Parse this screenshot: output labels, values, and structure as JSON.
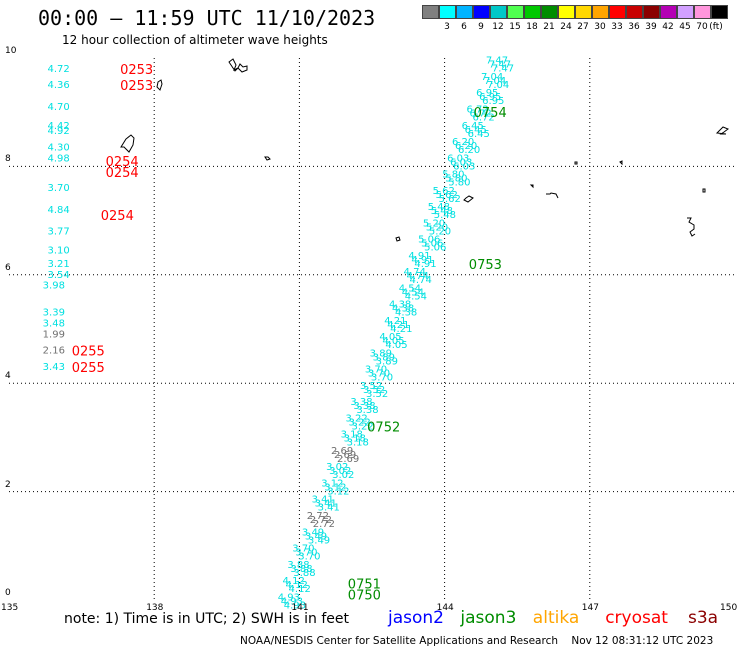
{
  "header": {
    "title": "00:00 – 11:59 UTC 11/10/2023",
    "subtitle": "12 hour collection of altimeter wave heights"
  },
  "legend": {
    "unit": "(ft)",
    "swatches": [
      {
        "label": "",
        "color": "#808080"
      },
      {
        "label": "3",
        "color": "#00ffff"
      },
      {
        "label": "6",
        "color": "#00b4ff"
      },
      {
        "label": "9",
        "color": "#0000ff"
      },
      {
        "label": "12",
        "color": "#00c8c8"
      },
      {
        "label": "15",
        "color": "#50ff50"
      },
      {
        "label": "18",
        "color": "#00c800"
      },
      {
        "label": "21",
        "color": "#008c00"
      },
      {
        "label": "24",
        "color": "#ffff00"
      },
      {
        "label": "27",
        "color": "#ffd700"
      },
      {
        "label": "30",
        "color": "#ffa500"
      },
      {
        "label": "33",
        "color": "#ff0000"
      },
      {
        "label": "36",
        "color": "#c80000"
      },
      {
        "label": "39",
        "color": "#8b0000"
      },
      {
        "label": "42",
        "color": "#b400b4"
      },
      {
        "label": "45",
        "color": "#d2a0ff"
      },
      {
        "label": "70",
        "color": "#ff96dc"
      },
      {
        "label": "",
        "color": "#000000"
      }
    ]
  },
  "axes": {
    "lon_ticks": [
      "135",
      "138",
      "141",
      "144",
      "147",
      "150"
    ],
    "lat_ticks": [
      "0",
      "2",
      "4",
      "6",
      "8",
      "10"
    ],
    "lon_range": [
      135,
      150
    ],
    "lat_range": [
      0,
      10
    ]
  },
  "track_labels": {
    "cryosat": [
      {
        "time": "0253",
        "lon": 136.8,
        "lat": 9.8
      },
      {
        "time": "0253",
        "lon": 136.8,
        "lat": 9.5
      },
      {
        "time": "0254",
        "lon": 136.5,
        "lat": 8.1
      },
      {
        "time": "0254",
        "lon": 136.5,
        "lat": 7.9
      },
      {
        "time": "0254",
        "lon": 136.4,
        "lat": 7.1
      },
      {
        "time": "0255",
        "lon": 135.8,
        "lat": 4.6
      },
      {
        "time": "0255",
        "lon": 135.8,
        "lat": 4.3
      }
    ],
    "jason3": [
      {
        "time": "0754",
        "lon": 144.6,
        "lat": 9.0
      },
      {
        "time": "0753",
        "lon": 144.5,
        "lat": 6.2
      },
      {
        "time": "0752",
        "lon": 142.4,
        "lat": 3.2
      },
      {
        "time": "0751",
        "lon": 142.0,
        "lat": 0.3
      },
      {
        "time": "0750",
        "lon": 142.0,
        "lat": 0.1
      }
    ]
  },
  "swh_values": {
    "cryosat_col": [
      {
        "v": "4.72",
        "c": "cyan",
        "lon": 135.3,
        "lat": 9.8
      },
      {
        "v": "4.36",
        "c": "cyan",
        "lon": 135.3,
        "lat": 9.5
      },
      {
        "v": "4.70",
        "c": "cyan",
        "lon": 135.3,
        "lat": 9.1
      },
      {
        "v": "4.42",
        "c": "cyan",
        "lon": 135.3,
        "lat": 8.75
      },
      {
        "v": "4.92",
        "c": "cyan",
        "lon": 135.3,
        "lat": 8.65
      },
      {
        "v": "4.30",
        "c": "cyan",
        "lon": 135.3,
        "lat": 8.35
      },
      {
        "v": "4.98",
        "c": "cyan",
        "lon": 135.3,
        "lat": 8.15
      },
      {
        "v": "3.70",
        "c": "cyan",
        "lon": 135.3,
        "lat": 7.6
      },
      {
        "v": "4.84",
        "c": "cyan",
        "lon": 135.3,
        "lat": 7.2
      },
      {
        "v": "3.77",
        "c": "cyan",
        "lon": 135.3,
        "lat": 6.8
      },
      {
        "v": "3.10",
        "c": "cyan",
        "lon": 135.3,
        "lat": 6.45
      },
      {
        "v": "3.21",
        "c": "cyan",
        "lon": 135.3,
        "lat": 6.2
      },
      {
        "v": "3.54",
        "c": "cyan",
        "lon": 135.3,
        "lat": 6.0
      },
      {
        "v": "3.98",
        "c": "cyan",
        "lon": 135.2,
        "lat": 5.8
      },
      {
        "v": "3.39",
        "c": "cyan",
        "lon": 135.2,
        "lat": 5.3
      },
      {
        "v": "3.48",
        "c": "cyan",
        "lon": 135.2,
        "lat": 5.1
      },
      {
        "v": "1.99",
        "c": "gray",
        "lon": 135.2,
        "lat": 4.9
      },
      {
        "v": "2.16",
        "c": "gray",
        "lon": 135.2,
        "lat": 4.6
      },
      {
        "v": "3.43",
        "c": "cyan",
        "lon": 135.2,
        "lat": 4.3
      }
    ],
    "jason3_track": [
      {
        "v": "7.47",
        "lon": 145.1,
        "lat": 9.95
      },
      {
        "v": "7.04",
        "lon": 145.0,
        "lat": 9.65
      },
      {
        "v": "6.95",
        "lon": 144.9,
        "lat": 9.35
      },
      {
        "v": "6.72",
        "lon": 144.7,
        "lat": 9.05
      },
      {
        "v": "6.45",
        "lon": 144.6,
        "lat": 8.75
      },
      {
        "v": "6.20",
        "lon": 144.4,
        "lat": 8.45
      },
      {
        "v": "6.03",
        "lon": 144.3,
        "lat": 8.15
      },
      {
        "v": "5.80",
        "lon": 144.2,
        "lat": 7.85
      },
      {
        "v": "5.62",
        "lon": 144.0,
        "lat": 7.55
      },
      {
        "v": "5.48",
        "lon": 143.9,
        "lat": 7.25
      },
      {
        "v": "5.20",
        "lon": 143.8,
        "lat": 6.95
      },
      {
        "v": "5.06",
        "lon": 143.7,
        "lat": 6.65
      },
      {
        "v": "4.91",
        "lon": 143.5,
        "lat": 6.35
      },
      {
        "v": "4.74",
        "lon": 143.4,
        "lat": 6.05
      },
      {
        "v": "4.54",
        "lon": 143.3,
        "lat": 5.75
      },
      {
        "v": "4.38",
        "lon": 143.1,
        "lat": 5.45
      },
      {
        "v": "4.21",
        "lon": 143.0,
        "lat": 5.15
      },
      {
        "v": "4.05",
        "lon": 142.9,
        "lat": 4.85
      },
      {
        "v": "3.89",
        "lon": 142.7,
        "lat": 4.55
      },
      {
        "v": "3.70",
        "lon": 142.6,
        "lat": 4.25
      },
      {
        "v": "3.52",
        "lon": 142.5,
        "lat": 3.95
      },
      {
        "v": "3.38",
        "lon": 142.3,
        "lat": 3.65
      },
      {
        "v": "3.22",
        "lon": 142.2,
        "lat": 3.35
      },
      {
        "v": "3.18",
        "lon": 142.1,
        "lat": 3.05
      },
      {
        "v": "2.69",
        "lon": 141.9,
        "lat": 2.75,
        "c": "gray"
      },
      {
        "v": "3.02",
        "lon": 141.8,
        "lat": 2.45
      },
      {
        "v": "3.12",
        "lon": 141.7,
        "lat": 2.15
      },
      {
        "v": "3.41",
        "lon": 141.5,
        "lat": 1.85
      },
      {
        "v": "2.72",
        "lon": 141.4,
        "lat": 1.55,
        "c": "gray"
      },
      {
        "v": "3.49",
        "lon": 141.3,
        "lat": 1.25
      },
      {
        "v": "3.70",
        "lon": 141.1,
        "lat": 0.95
      },
      {
        "v": "3.88",
        "lon": 141.0,
        "lat": 0.65
      },
      {
        "v": "4.12",
        "lon": 140.9,
        "lat": 0.35
      },
      {
        "v": "4.93",
        "lon": 140.8,
        "lat": 0.05
      }
    ]
  },
  "footer": {
    "note": "note:  1) Time is in UTC;  2) SWH is in feet",
    "satellites": [
      {
        "name": "jason2",
        "color": "#0000ff"
      },
      {
        "name": "jason3",
        "color": "#008c00"
      },
      {
        "name": "altika",
        "color": "#ffa500"
      },
      {
        "name": "cryosat",
        "color": "#ff0000"
      },
      {
        "name": "s3a",
        "color": "#8b0000"
      }
    ],
    "credit": "NOAA/NESDIS Center for Satellite Applications and Research    Nov 12 08:31:12 UTC 2023"
  }
}
